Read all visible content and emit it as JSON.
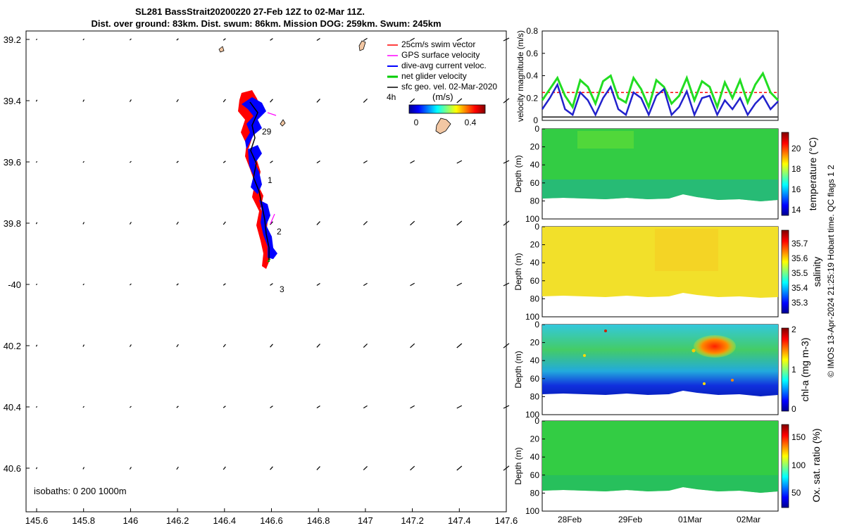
{
  "header": {
    "title_line1": "SL281 BassStrait20200220 27-Feb 12Z to 02-Mar 11Z.",
    "title_line2": "Dist. over ground: 83km. Dist. swum: 86km. Mission DOG: 259km. Swum: 245km"
  },
  "map": {
    "lon_ticks": [
      "145.6",
      "145.8",
      "146",
      "146.2",
      "146.4",
      "146.6",
      "146.8",
      "147",
      "147.2",
      "147.4",
      "147.6"
    ],
    "lat_ticks": [
      "39.2",
      "39.4",
      "39.6",
      "39.8",
      "-40",
      "40.2",
      "40.4",
      "40.6"
    ],
    "legend": [
      {
        "label": "25cm/s swim vector",
        "color": "#ff0000"
      },
      {
        "label": "GPS surface velocity",
        "color": "#ff00ff"
      },
      {
        "label": "dive-avg current veloc.",
        "color": "#0000ff"
      },
      {
        "label": "net glider velocity",
        "color": "#00cc00"
      },
      {
        "label": "sfc geo. vel. 02-Mar-2020",
        "color": "#000000"
      }
    ],
    "time_step_label": "4h",
    "colorbar_label": "(m/s)",
    "colorbar_ticks": [
      "0",
      "0.4"
    ],
    "day_labels": [
      "29",
      "1",
      "2",
      "3"
    ],
    "isobaths_label": "isobaths: 0   200  1000m"
  },
  "footer": {
    "credit": "© IMOS 13-Apr-2024 21:25:19 Hobart time. QC flags 1  2"
  },
  "chart_data": [
    {
      "type": "line",
      "ylabel": "velocity magnitude (m/s)",
      "ylim": [
        0,
        0.8
      ],
      "yticks": [
        "0",
        "0.2",
        "0.4",
        "0.6",
        "0.8"
      ],
      "x": [
        0,
        3,
        6,
        9,
        12,
        15,
        18,
        21,
        24,
        27,
        30,
        33,
        36,
        39,
        42,
        45,
        48,
        51,
        54,
        57,
        60,
        63,
        66,
        69,
        72,
        75,
        78,
        81,
        84,
        87,
        90,
        93
      ],
      "series": [
        {
          "color": "#22dd22",
          "values": [
            0.18,
            0.28,
            0.38,
            0.22,
            0.12,
            0.36,
            0.3,
            0.15,
            0.35,
            0.4,
            0.2,
            0.16,
            0.38,
            0.28,
            0.12,
            0.36,
            0.3,
            0.15,
            0.22,
            0.38,
            0.18,
            0.35,
            0.3,
            0.12,
            0.34,
            0.2,
            0.36,
            0.16,
            0.32,
            0.42,
            0.25,
            0.18
          ]
        },
        {
          "color": "#2222cc",
          "values": [
            0.1,
            0.2,
            0.32,
            0.1,
            0.05,
            0.25,
            0.18,
            0.05,
            0.2,
            0.3,
            0.1,
            0.05,
            0.25,
            0.2,
            0.05,
            0.22,
            0.28,
            0.05,
            0.12,
            0.26,
            0.05,
            0.2,
            0.22,
            0.05,
            0.18,
            0.1,
            0.2,
            0.05,
            0.15,
            0.22,
            0.1,
            0.17
          ]
        },
        {
          "color": "#444444",
          "values": [
            0.03,
            0.03,
            0.03,
            0.03,
            0.03,
            0.03,
            0.03,
            0.03,
            0.03,
            0.03,
            0.03,
            0.03,
            0.03,
            0.03,
            0.03,
            0.03,
            0.03,
            0.03,
            0.03,
            0.03,
            0.03,
            0.03,
            0.03,
            0.03,
            0.03,
            0.03,
            0.03,
            0.03,
            0.03,
            0.03,
            0.03,
            0.03
          ]
        }
      ],
      "reference_line": {
        "y": 0.25,
        "color": "#ff0000",
        "style": "dashed"
      }
    },
    {
      "type": "heatmap",
      "ylabel": "Depth (m)",
      "yticks": [
        "0",
        "20",
        "40",
        "60",
        "80",
        "100"
      ],
      "colorbar_label": "temperature (°C)",
      "colorbar_ticks": [
        "20",
        "18",
        "16",
        "14"
      ]
    },
    {
      "type": "heatmap",
      "ylabel": "Depth (m)",
      "yticks": [
        "0",
        "20",
        "40",
        "60",
        "80",
        "100"
      ],
      "colorbar_label": "salinity",
      "colorbar_ticks": [
        "35.7",
        "35.6",
        "35.5",
        "35.4",
        "35.3"
      ]
    },
    {
      "type": "heatmap",
      "ylabel": "Depth (m)",
      "yticks": [
        "0",
        "20",
        "40",
        "60",
        "80",
        "100"
      ],
      "colorbar_label": "chl-a (mg m-3)",
      "colorbar_ticks": [
        "2",
        "1",
        "0"
      ]
    },
    {
      "type": "heatmap",
      "ylabel": "Depth (m)",
      "yticks": [
        "0",
        "20",
        "40",
        "60",
        "80",
        "100"
      ],
      "colorbar_label": "Ox. sat. ratio (%)",
      "colorbar_ticks": [
        "150",
        "100",
        "50"
      ],
      "xticks": [
        "28Feb",
        "29Feb",
        "01Mar",
        "02Mar"
      ]
    }
  ]
}
